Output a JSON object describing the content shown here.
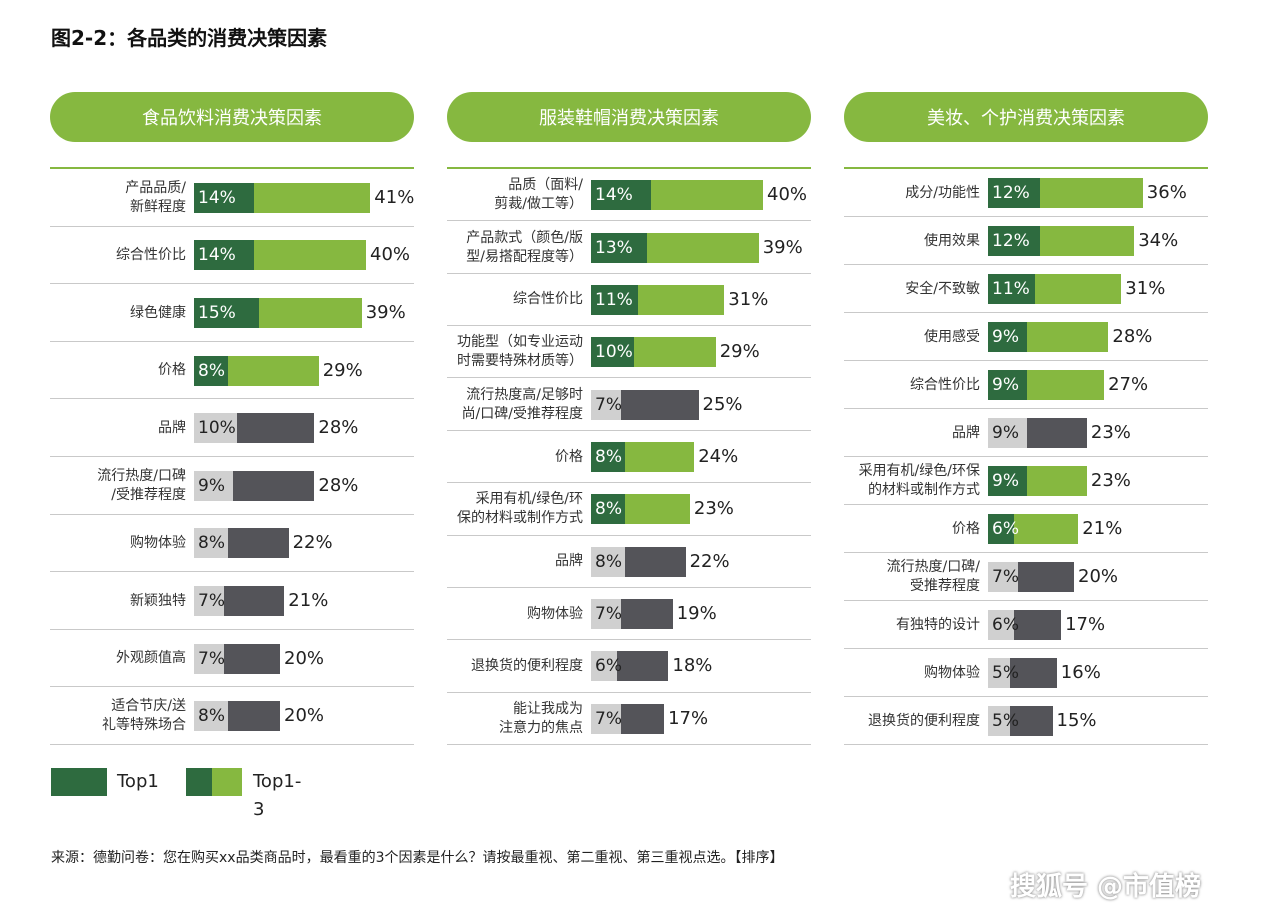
{
  "title": "图2-2：各品类的消费决策因素",
  "colors": {
    "top1": "#2e6b3f",
    "top13_green": "#86b840",
    "top1_light": "#d0d0d0",
    "top13_dark": "#545459",
    "pill": "#86b840"
  },
  "legend": {
    "top1": "Top1",
    "top13": "Top1-3"
  },
  "footnote": "来源：德勤问卷：您在购买xx品类商品时，最看重的3个因素是什么？请按最重视、第二重视、第三重视点选。【排序】",
  "watermark": "搜狐号 @市值榜",
  "chart_data": [
    {
      "type": "bar",
      "title": "食品饮料消费决策因素",
      "series_names": [
        "Top1",
        "Top1-3"
      ],
      "rows": [
        {
          "label": "产品品质/\n新鲜程度",
          "top1": 14,
          "top13": 41,
          "highlight": true
        },
        {
          "label": "综合性价比",
          "top1": 14,
          "top13": 40,
          "highlight": true
        },
        {
          "label": "绿色健康",
          "top1": 15,
          "top13": 39,
          "highlight": true
        },
        {
          "label": "价格",
          "top1": 8,
          "top13": 29,
          "highlight": true
        },
        {
          "label": "品牌",
          "top1": 10,
          "top13": 28,
          "highlight": false
        },
        {
          "label": "流行热度/口碑\n/受推荐程度",
          "top1": 9,
          "top13": 28,
          "highlight": false
        },
        {
          "label": "购物体验",
          "top1": 8,
          "top13": 22,
          "highlight": false
        },
        {
          "label": "新颖独特",
          "top1": 7,
          "top13": 21,
          "highlight": false
        },
        {
          "label": "外观颜值高",
          "top1": 7,
          "top13": 20,
          "highlight": false
        },
        {
          "label": "适合节庆/送\n礼等特殊场合",
          "top1": 8,
          "top13": 20,
          "highlight": false
        }
      ]
    },
    {
      "type": "bar",
      "title": "服装鞋帽消费决策因素",
      "series_names": [
        "Top1",
        "Top1-3"
      ],
      "rows": [
        {
          "label": "品质（面料/\n剪裁/做工等）",
          "top1": 14,
          "top13": 40,
          "highlight": true
        },
        {
          "label": "产品款式（颜色/版\n型/易搭配程度等）",
          "top1": 13,
          "top13": 39,
          "highlight": true
        },
        {
          "label": "综合性价比",
          "top1": 11,
          "top13": 31,
          "highlight": true
        },
        {
          "label": "功能型（如专业运动\n时需要特殊材质等）",
          "top1": 10,
          "top13": 29,
          "highlight": true
        },
        {
          "label": "流行热度高/足够时\n尚/口碑/受推荐程度",
          "top1": 7,
          "top13": 25,
          "highlight": false
        },
        {
          "label": "价格",
          "top1": 8,
          "top13": 24,
          "highlight": true
        },
        {
          "label": "采用有机/绿色/环\n保的材料或制作方式",
          "top1": 8,
          "top13": 23,
          "highlight": true
        },
        {
          "label": "品牌",
          "top1": 8,
          "top13": 22,
          "highlight": false
        },
        {
          "label": "购物体验",
          "top1": 7,
          "top13": 19,
          "highlight": false
        },
        {
          "label": "退换货的便利程度",
          "top1": 6,
          "top13": 18,
          "highlight": false
        },
        {
          "label": "能让我成为\n注意力的焦点",
          "top1": 7,
          "top13": 17,
          "highlight": false
        }
      ]
    },
    {
      "type": "bar",
      "title": "美妆、个护消费决策因素",
      "series_names": [
        "Top1",
        "Top1-3"
      ],
      "rows": [
        {
          "label": "成分/功能性",
          "top1": 12,
          "top13": 36,
          "highlight": true
        },
        {
          "label": "使用效果",
          "top1": 12,
          "top13": 34,
          "highlight": true
        },
        {
          "label": "安全/不致敏",
          "top1": 11,
          "top13": 31,
          "highlight": true
        },
        {
          "label": "使用感受",
          "top1": 9,
          "top13": 28,
          "highlight": true
        },
        {
          "label": "综合性价比",
          "top1": 9,
          "top13": 27,
          "highlight": true
        },
        {
          "label": "品牌",
          "top1": 9,
          "top13": 23,
          "highlight": false
        },
        {
          "label": "采用有机/绿色/环保\n的材料或制作方式",
          "top1": 9,
          "top13": 23,
          "highlight": true
        },
        {
          "label": "价格",
          "top1": 6,
          "top13": 21,
          "highlight": true
        },
        {
          "label": "流行热度/口碑/\n受推荐程度",
          "top1": 7,
          "top13": 20,
          "highlight": false
        },
        {
          "label": "有独特的设计",
          "top1": 6,
          "top13": 17,
          "highlight": false
        },
        {
          "label": "购物体验",
          "top1": 5,
          "top13": 16,
          "highlight": false
        },
        {
          "label": "退换货的便利程度",
          "top1": 5,
          "top13": 15,
          "highlight": false
        }
      ]
    }
  ]
}
